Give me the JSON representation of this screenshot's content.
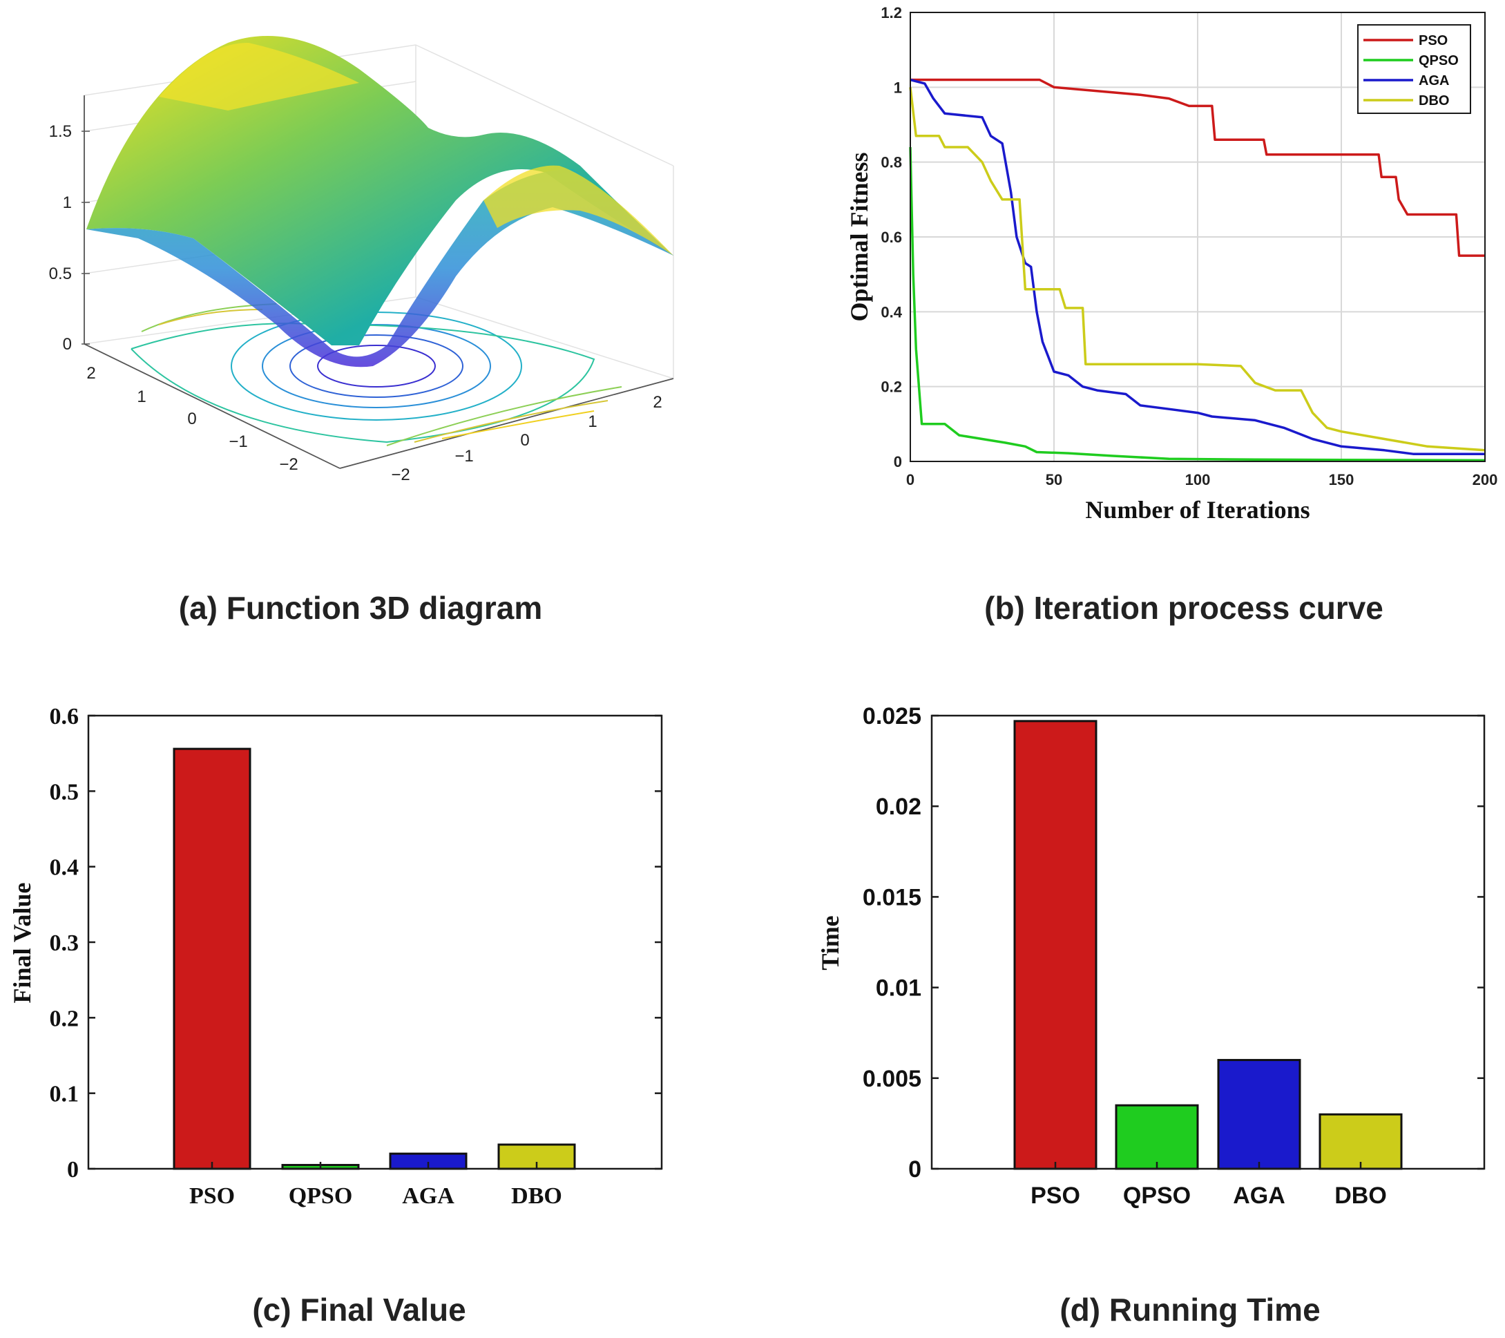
{
  "colors": {
    "pso": "#cc1a1a",
    "qpso": "#1fcc1f",
    "aga": "#1a1acc",
    "dbo": "#cccc1a",
    "grid": "#d8d8d8",
    "axis": "#1a1a1a"
  },
  "chart_data": [
    {
      "id": "a",
      "type": "surface3d",
      "caption": "(a) Function 3D diagram",
      "z_ticks": [
        "0",
        "0.5",
        "1",
        "1.5"
      ],
      "left_axis_ticks": [
        "2",
        "1",
        "0",
        "−1",
        "−2"
      ],
      "right_axis_ticks": [
        "−2",
        "−1",
        "0",
        "1",
        "2"
      ]
    },
    {
      "id": "b",
      "type": "line",
      "caption": "(b) Iteration process curve",
      "xlabel": "Number of Iterations",
      "ylabel": "Optimal Fitness",
      "xlim": [
        0,
        200
      ],
      "ylim": [
        0,
        1.2
      ],
      "x_ticks": [
        "0",
        "50",
        "100",
        "150",
        "200"
      ],
      "y_ticks": [
        "0",
        "0.2",
        "0.4",
        "0.6",
        "0.8",
        "1",
        "1.2"
      ],
      "legend_position": "top-right",
      "series": [
        {
          "name": "PSO",
          "color_key": "pso",
          "points": [
            [
              0,
              1.02
            ],
            [
              45,
              1.02
            ],
            [
              50,
              1.0
            ],
            [
              65,
              0.99
            ],
            [
              80,
              0.98
            ],
            [
              90,
              0.97
            ],
            [
              97,
              0.95
            ],
            [
              105,
              0.95
            ],
            [
              106,
              0.86
            ],
            [
              123,
              0.86
            ],
            [
              124,
              0.82
            ],
            [
              163,
              0.82
            ],
            [
              164,
              0.76
            ],
            [
              169,
              0.76
            ],
            [
              170,
              0.7
            ],
            [
              173,
              0.66
            ],
            [
              190,
              0.66
            ],
            [
              191,
              0.55
            ],
            [
              200,
              0.55
            ]
          ]
        },
        {
          "name": "QPSO",
          "color_key": "qpso",
          "points": [
            [
              0,
              0.84
            ],
            [
              1,
              0.5
            ],
            [
              2,
              0.3
            ],
            [
              4,
              0.1
            ],
            [
              12,
              0.1
            ],
            [
              17,
              0.07
            ],
            [
              25,
              0.06
            ],
            [
              33,
              0.05
            ],
            [
              40,
              0.04
            ],
            [
              44,
              0.025
            ],
            [
              55,
              0.022
            ],
            [
              70,
              0.015
            ],
            [
              90,
              0.007
            ],
            [
              120,
              0.005
            ],
            [
              150,
              0.004
            ],
            [
              200,
              0.003
            ]
          ]
        },
        {
          "name": "AGA",
          "color_key": "aga",
          "points": [
            [
              0,
              1.02
            ],
            [
              5,
              1.01
            ],
            [
              8,
              0.97
            ],
            [
              12,
              0.93
            ],
            [
              25,
              0.92
            ],
            [
              28,
              0.87
            ],
            [
              32,
              0.85
            ],
            [
              35,
              0.72
            ],
            [
              37,
              0.6
            ],
            [
              40,
              0.53
            ],
            [
              42,
              0.52
            ],
            [
              44,
              0.4
            ],
            [
              46,
              0.32
            ],
            [
              48,
              0.28
            ],
            [
              50,
              0.24
            ],
            [
              55,
              0.23
            ],
            [
              60,
              0.2
            ],
            [
              65,
              0.19
            ],
            [
              75,
              0.18
            ],
            [
              80,
              0.15
            ],
            [
              90,
              0.14
            ],
            [
              100,
              0.13
            ],
            [
              105,
              0.12
            ],
            [
              120,
              0.11
            ],
            [
              130,
              0.09
            ],
            [
              140,
              0.06
            ],
            [
              150,
              0.04
            ],
            [
              165,
              0.03
            ],
            [
              175,
              0.02
            ],
            [
              200,
              0.02
            ]
          ]
        },
        {
          "name": "DBO",
          "color_key": "dbo",
          "points": [
            [
              0,
              1.0
            ],
            [
              2,
              0.87
            ],
            [
              10,
              0.87
            ],
            [
              12,
              0.84
            ],
            [
              20,
              0.84
            ],
            [
              25,
              0.8
            ],
            [
              28,
              0.75
            ],
            [
              32,
              0.7
            ],
            [
              38,
              0.7
            ],
            [
              40,
              0.46
            ],
            [
              52,
              0.46
            ],
            [
              54,
              0.41
            ],
            [
              60,
              0.41
            ],
            [
              61,
              0.26
            ],
            [
              100,
              0.26
            ],
            [
              115,
              0.255
            ],
            [
              120,
              0.21
            ],
            [
              127,
              0.19
            ],
            [
              136,
              0.19
            ],
            [
              140,
              0.13
            ],
            [
              145,
              0.09
            ],
            [
              150,
              0.08
            ],
            [
              165,
              0.06
            ],
            [
              180,
              0.04
            ],
            [
              190,
              0.035
            ],
            [
              200,
              0.03
            ]
          ]
        }
      ]
    },
    {
      "id": "c",
      "type": "bar",
      "caption": "(c) Final Value",
      "ylabel": "Final Value",
      "ylim": [
        0,
        0.6
      ],
      "y_ticks": [
        "0",
        "0.1",
        "0.2",
        "0.3",
        "0.4",
        "0.5",
        "0.6"
      ],
      "categories": [
        "PSO",
        "QPSO",
        "AGA",
        "DBO"
      ],
      "values": [
        0.556,
        0.005,
        0.02,
        0.032
      ],
      "color_keys": [
        "pso",
        "qpso",
        "aga",
        "dbo"
      ]
    },
    {
      "id": "d",
      "type": "bar",
      "caption": "(d) Running Time",
      "ylabel": "Time",
      "ylim": [
        0,
        0.025
      ],
      "y_ticks": [
        "0",
        "0.005",
        "0.01",
        "0.015",
        "0.02",
        "0.025"
      ],
      "categories": [
        "PSO",
        "QPSO",
        "AGA",
        "DBO"
      ],
      "values": [
        0.0247,
        0.0035,
        0.006,
        0.003
      ],
      "color_keys": [
        "pso",
        "qpso",
        "aga",
        "dbo"
      ]
    }
  ]
}
